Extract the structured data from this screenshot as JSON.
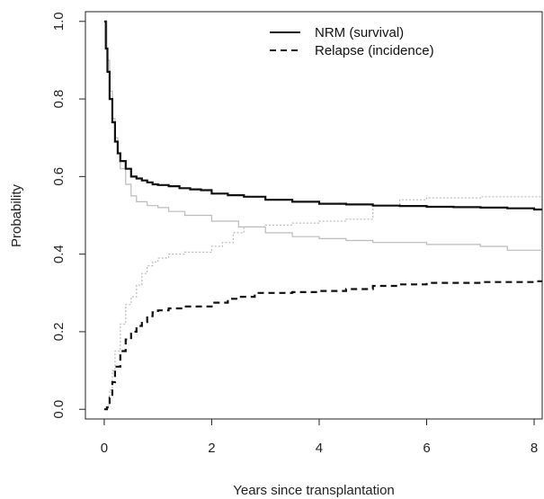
{
  "chart_data": {
    "type": "line",
    "xlabel": "Years since transplantation",
    "ylabel": "Probability",
    "xlim": [
      -0.35,
      8.15
    ],
    "ylim": [
      -0.025,
      1.025
    ],
    "xticks": [
      0,
      2,
      4,
      6,
      8
    ],
    "yticks": [
      0.0,
      0.2,
      0.4,
      0.6,
      0.8,
      1.0
    ],
    "xtick_labels": [
      "0",
      "2",
      "4",
      "6",
      "8"
    ],
    "ytick_labels": [
      "0.0",
      "0.2",
      "0.4",
      "0.6",
      "0.8",
      "1.0"
    ],
    "grid": false,
    "legend_position": "top-right",
    "legend": [
      {
        "label": "NRM (survival)",
        "style": "solid",
        "color": "#111111"
      },
      {
        "label": "Relapse (incidence)",
        "style": "dashed",
        "color": "#111111"
      }
    ],
    "series": [
      {
        "name": "NRM (survival)",
        "style": "solid",
        "color": "#111111",
        "x": [
          0,
          0.03,
          0.06,
          0.1,
          0.15,
          0.2,
          0.25,
          0.3,
          0.4,
          0.5,
          0.6,
          0.7,
          0.8,
          0.9,
          1.0,
          1.2,
          1.4,
          1.6,
          1.8,
          2.0,
          2.3,
          2.6,
          3.0,
          3.5,
          4.0,
          4.5,
          5.0,
          5.5,
          6.0,
          6.5,
          7.0,
          7.5,
          8.0,
          8.15
        ],
        "y": [
          1.0,
          0.93,
          0.87,
          0.8,
          0.74,
          0.69,
          0.66,
          0.64,
          0.62,
          0.6,
          0.595,
          0.59,
          0.585,
          0.58,
          0.578,
          0.575,
          0.57,
          0.567,
          0.565,
          0.556,
          0.552,
          0.548,
          0.54,
          0.535,
          0.53,
          0.528,
          0.525,
          0.524,
          0.522,
          0.521,
          0.52,
          0.518,
          0.515,
          0.515
        ]
      },
      {
        "name": "Relapse (incidence)",
        "style": "dashed",
        "color": "#111111",
        "x": [
          0,
          0.05,
          0.1,
          0.15,
          0.2,
          0.3,
          0.4,
          0.5,
          0.6,
          0.7,
          0.8,
          0.9,
          1.0,
          1.2,
          1.5,
          2.0,
          2.3,
          2.5,
          2.8,
          3.0,
          3.5,
          4.0,
          4.5,
          5.0,
          5.5,
          6.0,
          7.0,
          8.0,
          8.15
        ],
        "y": [
          0.0,
          0.005,
          0.03,
          0.07,
          0.11,
          0.15,
          0.18,
          0.2,
          0.215,
          0.225,
          0.24,
          0.25,
          0.255,
          0.26,
          0.265,
          0.275,
          0.285,
          0.29,
          0.3,
          0.3,
          0.302,
          0.305,
          0.31,
          0.318,
          0.322,
          0.326,
          0.328,
          0.33,
          0.33
        ]
      },
      {
        "style": "solid",
        "color": "#bbbbbb",
        "x": [
          0,
          0.05,
          0.1,
          0.15,
          0.2,
          0.25,
          0.3,
          0.4,
          0.5,
          0.6,
          0.8,
          1.0,
          1.2,
          1.5,
          2.0,
          2.5,
          3.0,
          3.5,
          4.0,
          4.5,
          5.0,
          6.0,
          7.0,
          7.5,
          8.0,
          8.15
        ],
        "y": [
          1.0,
          0.9,
          0.82,
          0.75,
          0.7,
          0.66,
          0.62,
          0.58,
          0.55,
          0.535,
          0.525,
          0.52,
          0.51,
          0.5,
          0.485,
          0.47,
          0.455,
          0.445,
          0.44,
          0.435,
          0.43,
          0.425,
          0.42,
          0.41,
          0.41,
          0.41
        ]
      },
      {
        "style": "dotted",
        "color": "#bbbbbb",
        "x": [
          0,
          0.05,
          0.1,
          0.15,
          0.2,
          0.3,
          0.4,
          0.5,
          0.6,
          0.7,
          0.8,
          0.9,
          1.0,
          1.2,
          1.5,
          2.0,
          2.2,
          2.4,
          2.6,
          3.0,
          3.5,
          4.0,
          4.5,
          5.0,
          5.5,
          6.0,
          7.0,
          8.0,
          8.15
        ],
        "y": [
          0.0,
          0.01,
          0.05,
          0.1,
          0.15,
          0.22,
          0.27,
          0.29,
          0.32,
          0.35,
          0.37,
          0.38,
          0.39,
          0.4,
          0.405,
          0.42,
          0.43,
          0.455,
          0.47,
          0.475,
          0.48,
          0.485,
          0.49,
          0.525,
          0.54,
          0.545,
          0.548,
          0.548,
          0.548
        ]
      }
    ]
  }
}
